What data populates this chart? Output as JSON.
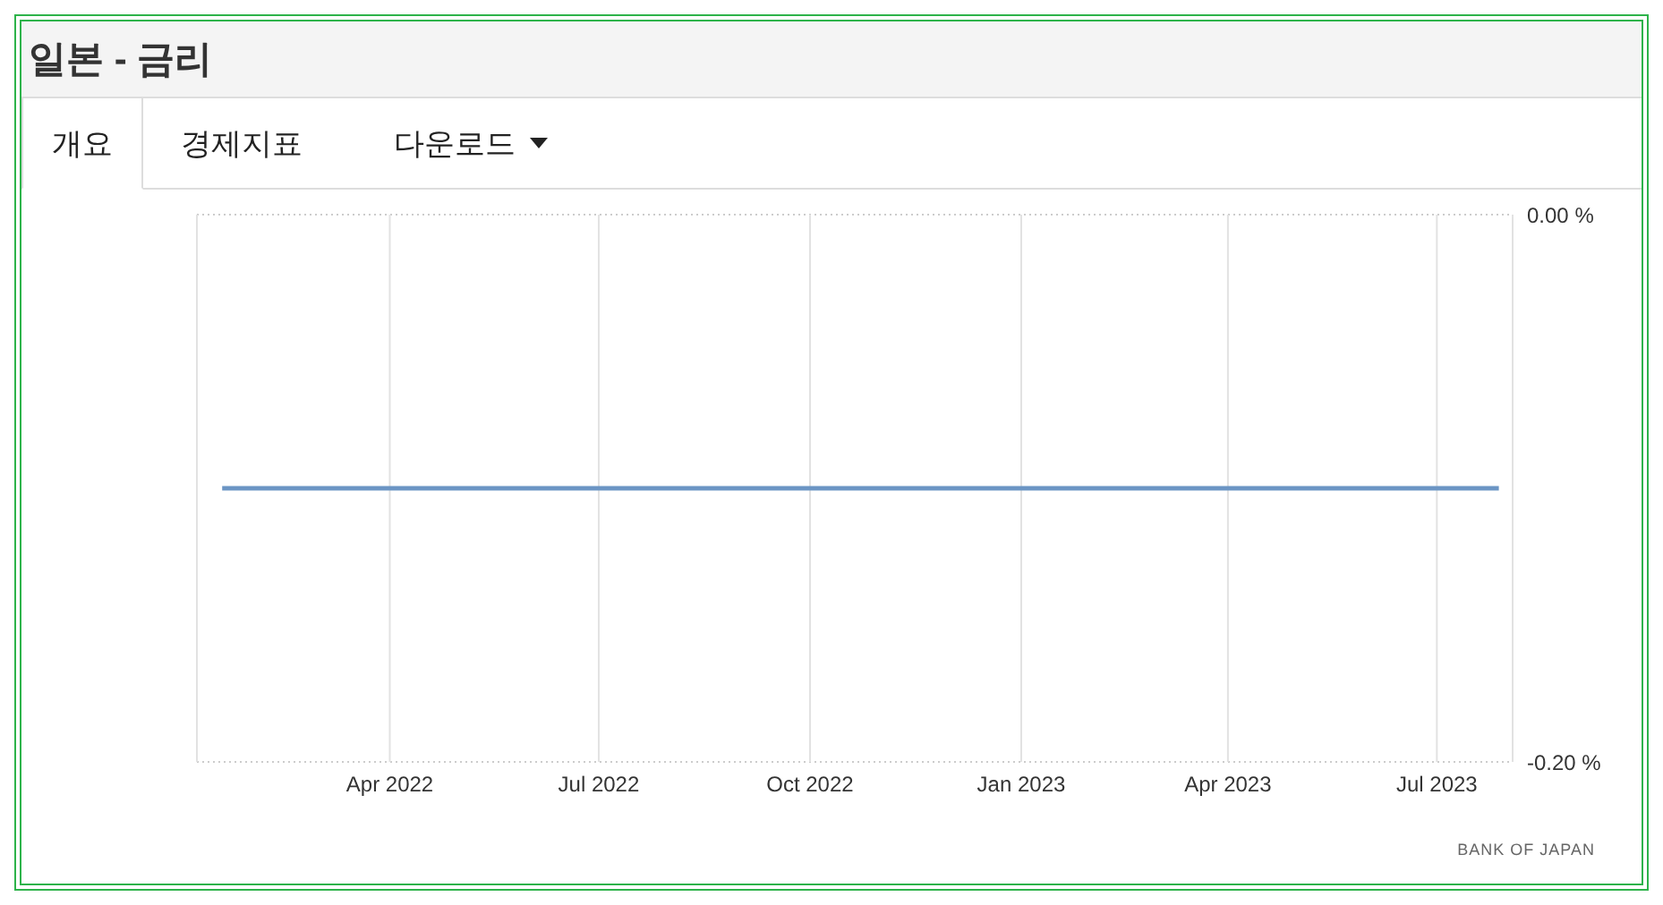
{
  "chart_data": {
    "type": "line",
    "title": "일본 - 금리",
    "x": [
      "2022-01-18",
      "2022-03-17",
      "2022-04-28",
      "2022-06-17",
      "2022-07-21",
      "2022-09-22",
      "2022-10-28",
      "2022-12-20",
      "2023-01-18",
      "2023-03-10",
      "2023-04-28",
      "2023-06-16",
      "2023-07-28"
    ],
    "series": [
      {
        "color": "#6b95c4",
        "values": [
          -0.1,
          -0.1,
          -0.1,
          -0.1,
          -0.1,
          -0.1,
          -0.1,
          -0.1,
          -0.1,
          -0.1,
          -0.1,
          -0.1,
          -0.1
        ]
      }
    ],
    "xlim": [
      "2022-01-07",
      "2023-08-03"
    ],
    "xticks": [
      {
        "value": "2022-04-01",
        "label": "Apr 2022"
      },
      {
        "value": "2022-07-01",
        "label": "Jul 2022"
      },
      {
        "value": "2022-10-01",
        "label": "Oct 2022"
      },
      {
        "value": "2023-01-01",
        "label": "Jan 2023"
      },
      {
        "value": "2023-04-01",
        "label": "Apr 2023"
      },
      {
        "value": "2023-07-01",
        "label": "Jul 2023"
      }
    ],
    "ylim": [
      -0.2,
      0
    ],
    "yticks": [
      {
        "value": -0.2,
        "label": "-0.20 %"
      },
      {
        "value": 0,
        "label": "0.00 %"
      }
    ],
    "grid": true,
    "marker": "none",
    "line_style": "solid",
    "annotations": [
      "개요",
      "경제지표",
      "다운로드",
      "BANK OF JAPAN"
    ]
  }
}
